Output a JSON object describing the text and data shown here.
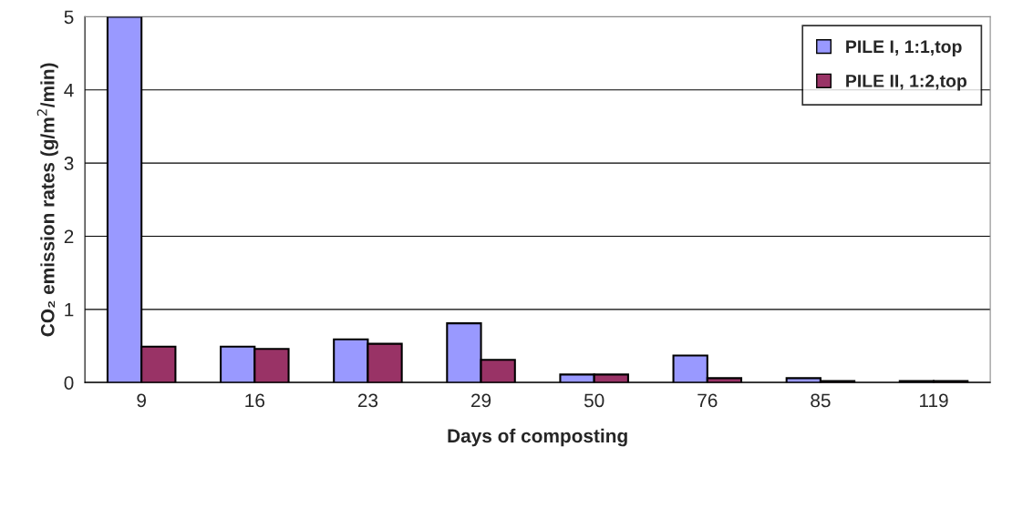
{
  "chart_data": {
    "type": "bar",
    "xlabel": "Days of composting",
    "ylabel": "CO₂ emission rates (g/m$^{2}$/min)",
    "categories": [
      "9",
      "16",
      "23",
      "29",
      "50",
      "76",
      "85",
      "119"
    ],
    "series": [
      {
        "name": "PILE I, 1:1,top",
        "color": "#9999ff",
        "values": [
          5,
          0.49,
          0.59,
          0.81,
          0.11,
          0.37,
          0.06,
          0.02
        ]
      },
      {
        "name": "PILE II, 1:2,top",
        "color": "#993366",
        "values": [
          0.49,
          0.46,
          0.53,
          0.31,
          0.11,
          0.06,
          0.02,
          0.02
        ]
      }
    ],
    "ylim": [
      0,
      5
    ],
    "yticks": [
      0,
      1,
      2,
      3,
      4,
      5
    ],
    "grid": "y",
    "legend": "top right"
  }
}
